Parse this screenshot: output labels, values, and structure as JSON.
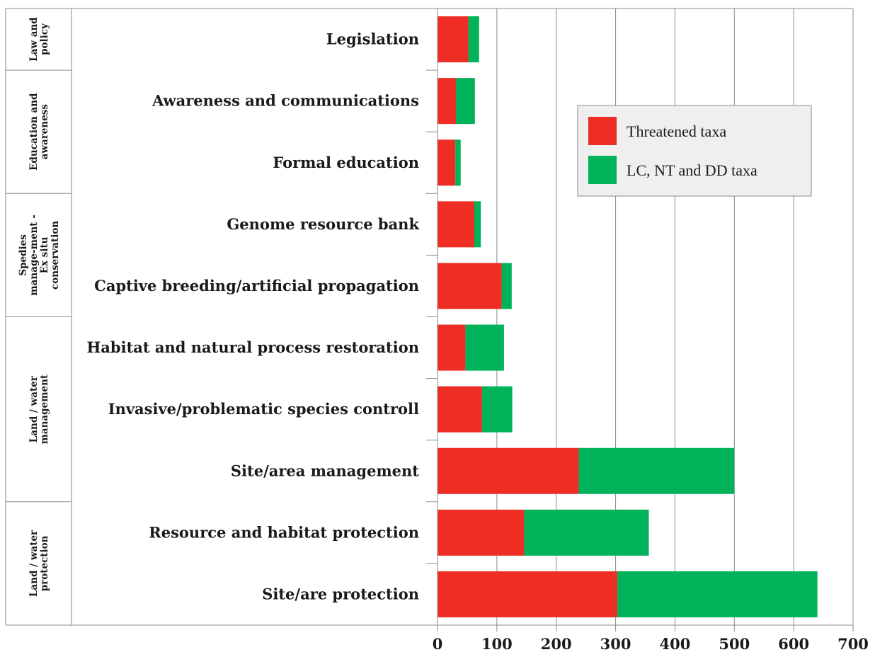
{
  "chart_data": {
    "type": "bar",
    "orientation": "horizontal",
    "stacked": true,
    "groups": [
      {
        "label": "Law and policy",
        "categories": [
          "Legislation"
        ]
      },
      {
        "label": "Education and awareness",
        "categories": [
          "Awareness and communications",
          "Formal education"
        ]
      },
      {
        "label": "Spedies manage-ment - Ex situ conservation",
        "categories": [
          "Genome resource bank",
          "Captive breeding/artificial propagation"
        ]
      },
      {
        "label": "Land / water management",
        "categories": [
          "Habitat and natural process restoration",
          "Invasive/problematic species controll",
          "Site/area management"
        ]
      },
      {
        "label": "Land / water protection",
        "categories": [
          "Resource and habitat protection",
          "Site/are protection"
        ]
      }
    ],
    "categories": [
      "Legislation",
      "Awareness and communications",
      "Formal education",
      "Genome resource bank",
      "Captive breeding/artificial propagation",
      "Habitat and natural process restoration",
      "Invasive/problematic species controll",
      "Site/area management",
      "Resource and habitat protection",
      "Site/are protection"
    ],
    "series": [
      {
        "name": "Threatened taxa",
        "color": "#ee2e24",
        "values": [
          52,
          31,
          30,
          62,
          108,
          47,
          75,
          238,
          146,
          303
        ]
      },
      {
        "name": "LC, NT and DD taxa",
        "color": "#00b259",
        "values": [
          18,
          32,
          9,
          11,
          17,
          65,
          51,
          262,
          210,
          337
        ]
      }
    ],
    "xlim": [
      0,
      700
    ],
    "xticks": [
      "0",
      "100",
      "200",
      "300",
      "400",
      "500",
      "600",
      "700"
    ],
    "grid": true,
    "legend_position": "upper-right",
    "title": "",
    "xlabel": "",
    "ylabel": ""
  }
}
